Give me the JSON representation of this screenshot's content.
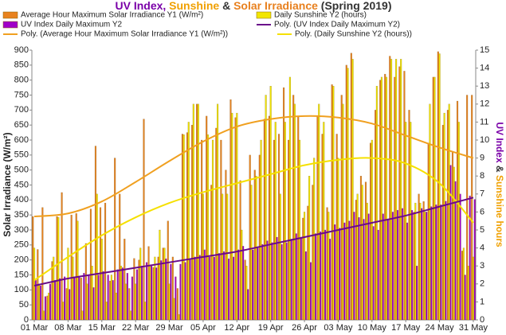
{
  "chart_data": {
    "type": "bar",
    "title_parts": [
      {
        "text": "UV Index, ",
        "color": "#7a00a8"
      },
      {
        "text": "Sunshine",
        "color": "#f0a000"
      },
      {
        "text": " & ",
        "color": "#333333"
      },
      {
        "text": "Solar Irradiance",
        "color": "#e8801e"
      },
      {
        "text": " (Spring 2019)",
        "color": "#333333"
      }
    ],
    "ylabel": "Solar Irradiance (W/m²)",
    "ylabel_color": "#e8801e",
    "y2label_parts": [
      {
        "text": "UV Index",
        "color": "#7a00a8"
      },
      {
        "text": " & ",
        "color": "#333333"
      },
      {
        "text": "Sunshine hours",
        "color": "#f0a000"
      }
    ],
    "categories": [
      "01 Mar",
      null,
      null,
      null,
      null,
      null,
      null,
      "08 Mar",
      null,
      null,
      null,
      null,
      null,
      null,
      "15 Mar",
      null,
      null,
      null,
      null,
      null,
      null,
      "22 Mar",
      null,
      null,
      null,
      null,
      null,
      null,
      "29 Mar",
      null,
      null,
      null,
      null,
      null,
      null,
      "05 Apr",
      null,
      null,
      null,
      null,
      null,
      null,
      "12 Apr",
      null,
      null,
      null,
      null,
      null,
      null,
      "19 Apr",
      null,
      null,
      null,
      null,
      null,
      null,
      "26 Apr",
      null,
      null,
      null,
      null,
      null,
      null,
      "03 May",
      null,
      null,
      null,
      null,
      null,
      null,
      "10 May",
      null,
      null,
      null,
      null,
      null,
      null,
      "17 May",
      null,
      null,
      null,
      null,
      null,
      null,
      "24 May",
      null,
      null,
      null,
      null,
      null,
      null,
      "31 May"
    ],
    "ylim": [
      0,
      900
    ],
    "yticks": [
      0,
      50,
      100,
      150,
      200,
      250,
      300,
      350,
      400,
      450,
      500,
      550,
      600,
      650,
      700,
      750,
      800,
      850,
      900
    ],
    "y2lim": [
      0,
      15
    ],
    "y2ticks": [
      0,
      1,
      2,
      3,
      4,
      5,
      6,
      7,
      8,
      9,
      10,
      11,
      12,
      13,
      14,
      15
    ],
    "legend": "top",
    "series": [
      {
        "name": "Average Hour Maximum Solar Irradiance Y1 (W/m²)",
        "type": "bar",
        "axis": "y",
        "color": "#e8821e",
        "values": [
          345,
          235,
          375,
          80,
          195,
          345,
          425,
          105,
          350,
          355,
          140,
          255,
          370,
          580,
          375,
          390,
          130,
          540,
          420,
          270,
          105,
          205,
          200,
          670,
          245,
          175,
          210,
          240,
          330,
          210,
          105,
          620,
          625,
          650,
          720,
          600,
          680,
          450,
          640,
          600,
          500,
          735,
          675,
          465,
          200,
          550,
          500,
          550,
          670,
          680,
          600,
          620,
          775,
          600,
          750,
          680,
          340,
          380,
          450,
          680,
          620,
          375,
          785,
          620,
          750,
          850,
          890,
          400,
          480,
          460,
          590,
          700,
          800,
          820,
          880,
          810,
          845,
          830,
          700,
          360,
          420,
          395,
          590,
          810,
          895,
          650,
          700,
          560,
          730,
          230,
          750,
          750
        ]
      },
      {
        "name": "Daily Sunshine Y2 (hours)",
        "type": "bar",
        "axis": "y2",
        "color": "#f2e600",
        "values": [
          4,
          2,
          0.5,
          1.5,
          3.5,
          5.7,
          1,
          4,
          3.5,
          5.5,
          0.5,
          2,
          3,
          7,
          4.5,
          1,
          2.5,
          1.5,
          3,
          2,
          0.5,
          2,
          4,
          1,
          3,
          3.5,
          5,
          4,
          2,
          1.2,
          0.3,
          10.3,
          11,
          12,
          12,
          7,
          10.3,
          10,
          12,
          7,
          7,
          11.5,
          11.5,
          5,
          3,
          7.5,
          8,
          10,
          12.5,
          13,
          11,
          7,
          11,
          13.5,
          12,
          10,
          6,
          8,
          9,
          12,
          11,
          6,
          13,
          9,
          12,
          14,
          14.5,
          7,
          7.5,
          6.5,
          10,
          13,
          13.5,
          13.5,
          14.5,
          14.5,
          14.5,
          11,
          11,
          6.5,
          6.5,
          6,
          12,
          13.5,
          14.8,
          11.5,
          12,
          8.5,
          11,
          4,
          3,
          3.5
        ]
      },
      {
        "name": "UV Index Daily Maximum Y2",
        "type": "bar",
        "axis": "y2",
        "color": "#a000c8",
        "values": [
          2.2,
          1.9,
          1.3,
          2.0,
          2.2,
          2.3,
          2.4,
          1.7,
          2.4,
          2.4,
          2.6,
          2.5,
          1.8,
          2.5,
          2.7,
          2.5,
          2.2,
          2.8,
          2.9,
          2.6,
          2.4,
          2.8,
          3.0,
          3.2,
          3.0,
          2.9,
          3.3,
          3.4,
          3.1,
          2.4,
          3.1,
          3.2,
          3.4,
          3.5,
          3.6,
          3.9,
          3.5,
          3.5,
          3.7,
          3.8,
          3.4,
          3.5,
          3.9,
          4.1,
          1.7,
          3.9,
          4.0,
          4.2,
          4.4,
          4.3,
          4.6,
          4.2,
          4.3,
          4.5,
          4.8,
          4.6,
          3.8,
          3.2,
          4.8,
          4.9,
          5.0,
          4.5,
          5.3,
          5.1,
          5.4,
          5.5,
          6.0,
          5.7,
          5.6,
          5.9,
          5.2,
          5.0,
          5.9,
          5.6,
          6.0,
          6.1,
          6.2,
          5.4,
          6.1,
          3.0,
          6.2,
          6.0,
          6.3,
          6.4,
          6.4,
          6.6,
          8.6,
          7.7,
          7.0,
          2.5,
          6.9,
          6.7
        ]
      },
      {
        "name": "Poly. (Average Hour Maximum Solar Irradiance Y1 (W/m²))",
        "type": "line",
        "axis": "y",
        "color": "#f0a020",
        "x": [
          "01 Mar",
          "08 Mar",
          "15 Mar",
          "22 Mar",
          "29 Mar",
          "05 Apr",
          "12 Apr",
          "19 Apr",
          "26 Apr",
          "03 May",
          "10 May",
          "17 May",
          "24 May",
          "31 May"
        ],
        "values": [
          345,
          355,
          395,
          460,
          530,
          595,
          645,
          670,
          680,
          675,
          655,
          615,
          575,
          540
        ]
      },
      {
        "name": "Poly. (Daily Sunshine Y2 (hours))",
        "type": "line",
        "axis": "y2",
        "color": "#f5e000",
        "x": [
          "01 Mar",
          "08 Mar",
          "15 Mar",
          "22 Mar",
          "29 Mar",
          "05 Apr",
          "12 Apr",
          "19 Apr",
          "26 Apr",
          "03 May",
          "10 May",
          "17 May",
          "24 May",
          "31 May"
        ],
        "values": [
          2.2,
          3.5,
          4.7,
          5.7,
          6.5,
          7.1,
          7.6,
          8.1,
          8.6,
          8.9,
          9.0,
          8.7,
          7.6,
          5.4
        ]
      },
      {
        "name": "Poly. (UV Index Daily Maximum Y2)",
        "type": "line",
        "axis": "y2",
        "color": "#6a0a8a",
        "x": [
          "01 Mar",
          "08 Mar",
          "15 Mar",
          "22 Mar",
          "29 Mar",
          "05 Apr",
          "12 Apr",
          "19 Apr",
          "26 Apr",
          "03 May",
          "10 May",
          "17 May",
          "24 May",
          "31 May"
        ],
        "values": [
          1.9,
          2.3,
          2.6,
          2.9,
          3.2,
          3.5,
          3.8,
          4.2,
          4.6,
          5.0,
          5.4,
          5.8,
          6.3,
          6.8
        ]
      }
    ]
  }
}
